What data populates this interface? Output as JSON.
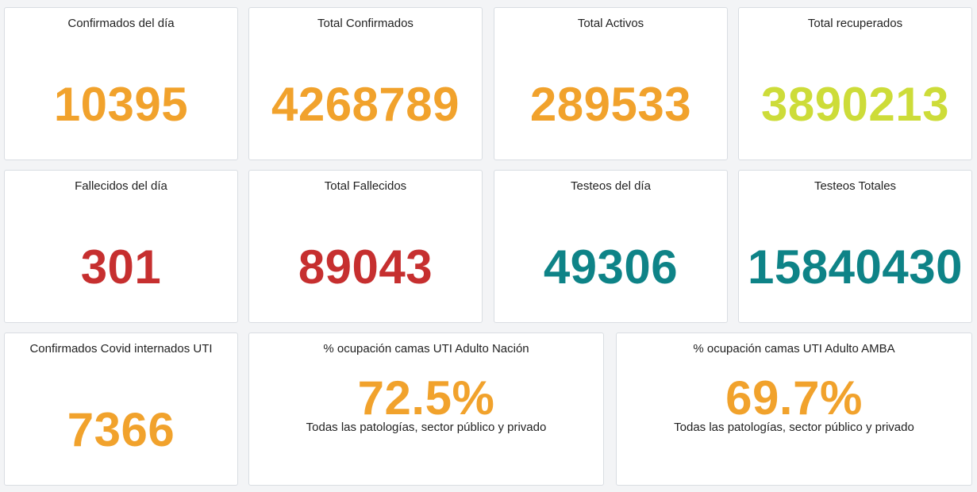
{
  "cards": [
    {
      "title": "Confirmados del día",
      "value": "10395",
      "color": "#f1a22c"
    },
    {
      "title": "Total Confirmados",
      "value": "4268789",
      "color": "#f1a22c"
    },
    {
      "title": "Total Activos",
      "value": "289533",
      "color": "#f1a22c"
    },
    {
      "title": "Total recuperados",
      "value": "3890213",
      "color": "#cddc39"
    },
    {
      "title": "Fallecidos del día",
      "value": "301",
      "color": "#c62f2f"
    },
    {
      "title": "Total Fallecidos",
      "value": "89043",
      "color": "#c62f2f"
    },
    {
      "title": "Testeos del día",
      "value": "49306",
      "color": "#0e8387"
    },
    {
      "title": "Testeos Totales",
      "value": "15840430",
      "color": "#0e8387"
    },
    {
      "title": "Confirmados Covid internados UTI",
      "value": "7366",
      "color": "#f1a22c"
    },
    {
      "title": "% ocupación camas UTI Adulto Nación",
      "value": "72.5%",
      "subtitle": "Todas las patologías, sector público y privado",
      "color": "#f1a22c"
    },
    {
      "title": "% ocupación camas UTI Adulto AMBA",
      "value": "69.7%",
      "subtitle": "Todas las patologías, sector público y privado",
      "color": "#f1a22c"
    }
  ]
}
